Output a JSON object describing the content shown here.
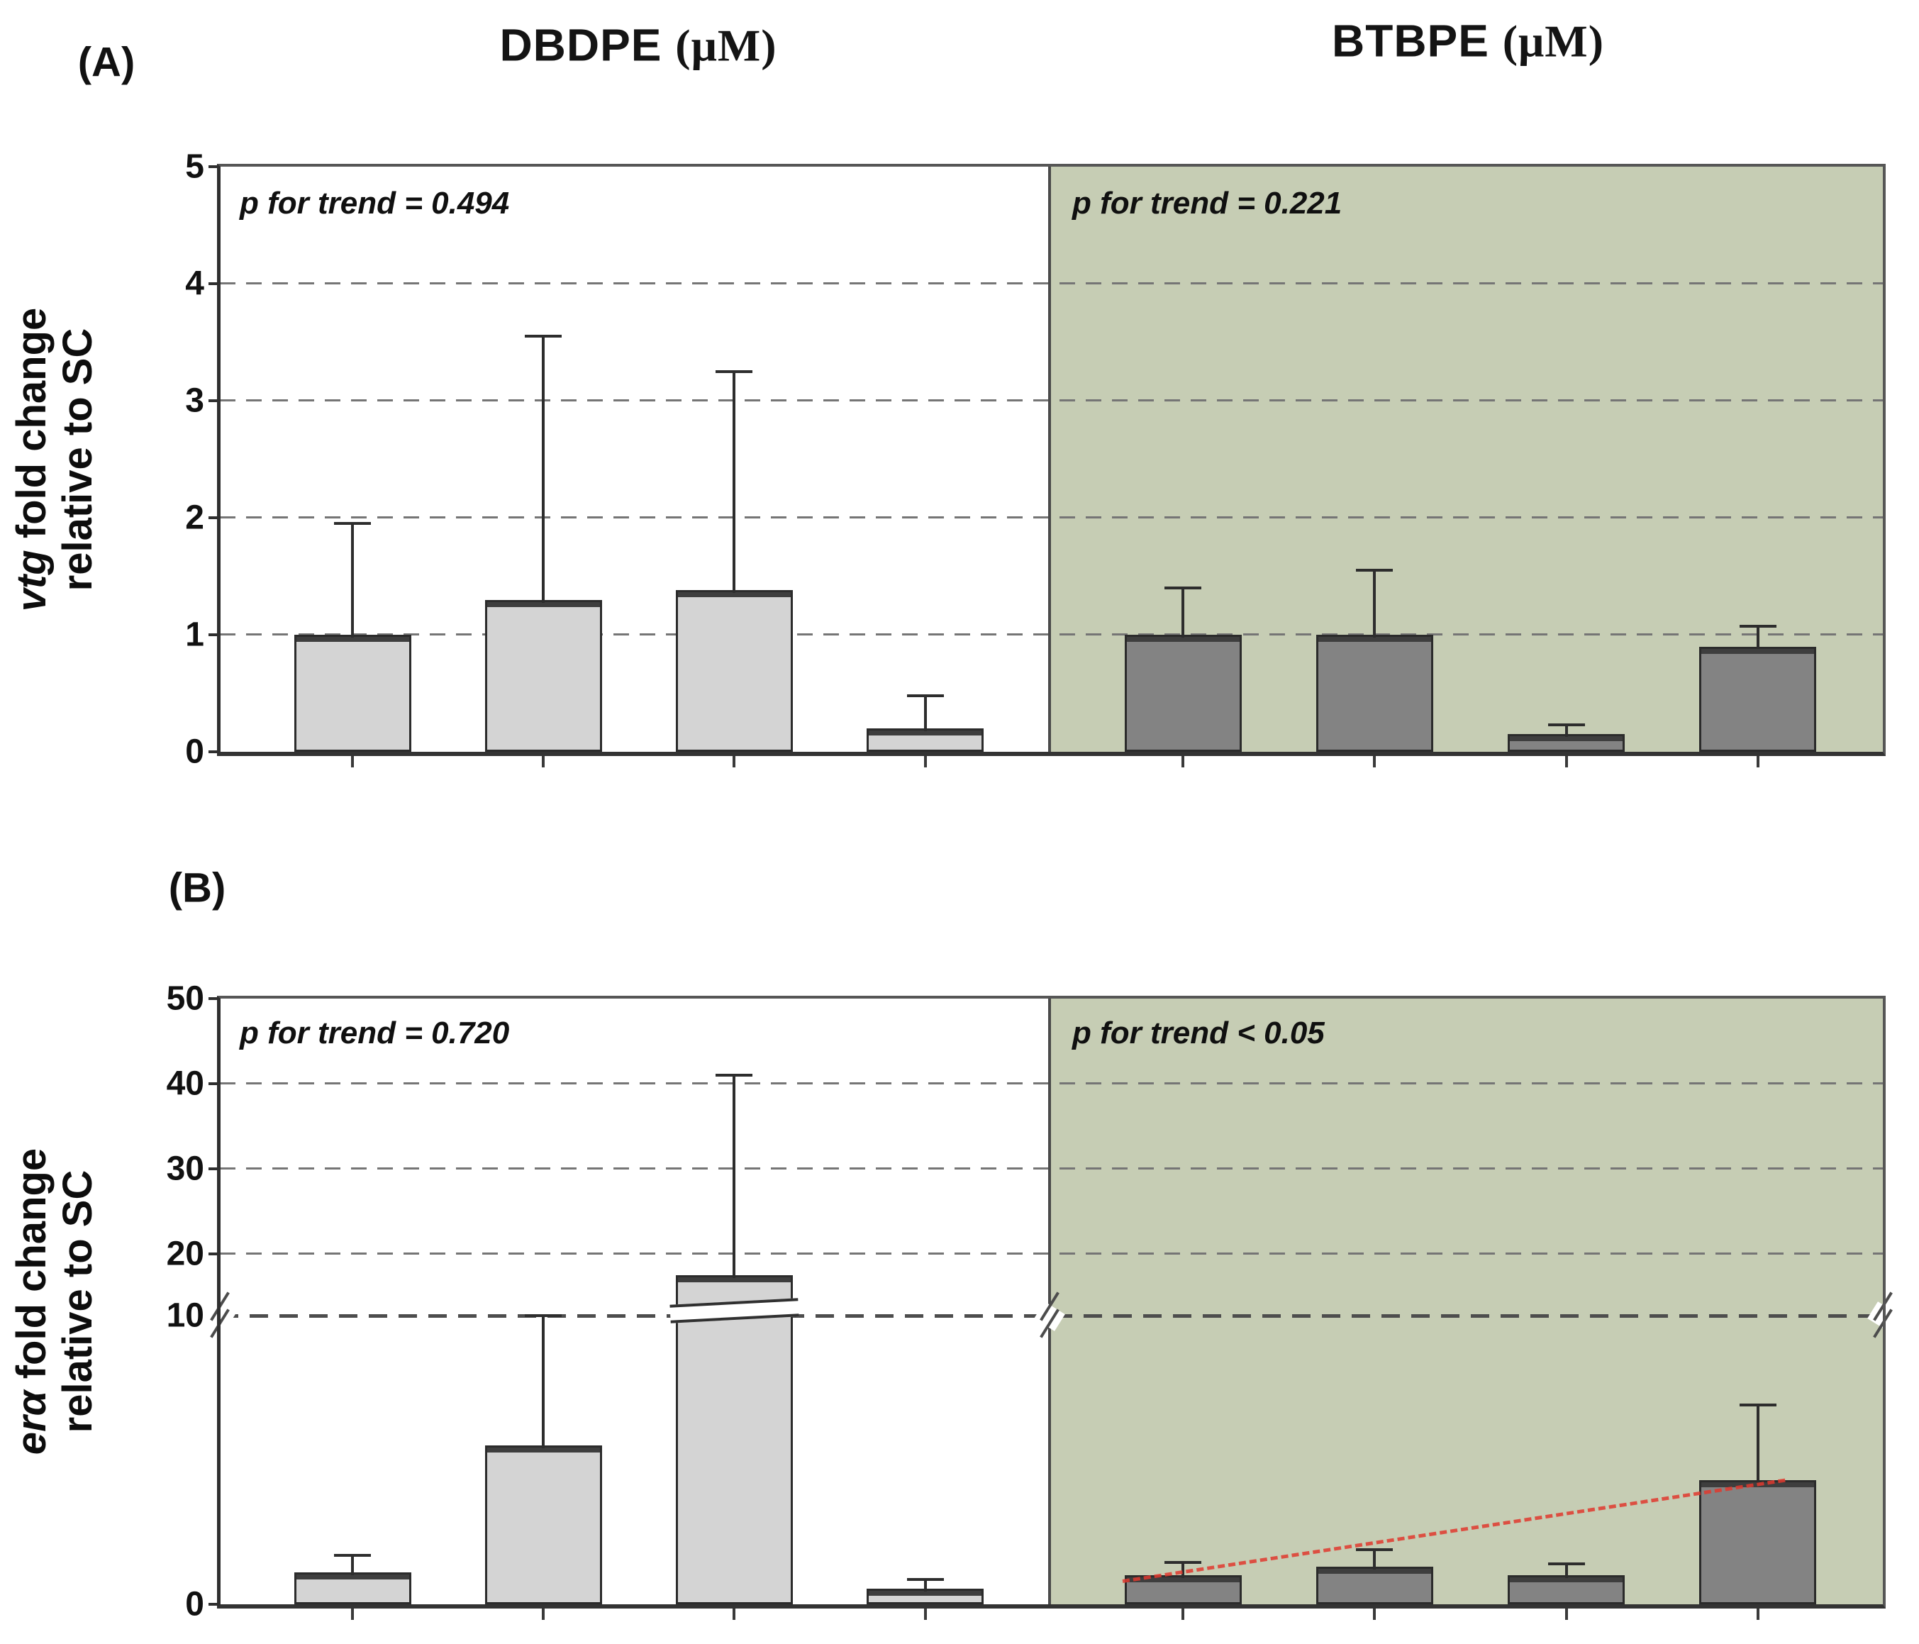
{
  "figure": {
    "panel_labels": [
      "(A)",
      "(B)"
    ],
    "col_titles": [
      {
        "name": "DBDPE ",
        "unit": "(μM)"
      },
      {
        "name": "BTBPE ",
        "unit": "(μM)"
      }
    ],
    "colors": {
      "left_panel_background": "#ffffff",
      "right_panel_background": "#c6cdb4",
      "light_bar": "#d4d4d4",
      "dark_bar": "#838383",
      "bar_border": "#2b2b2b",
      "gridline": "#757575",
      "trend_line_red": "#e03a2f"
    }
  },
  "chart_data": [
    {
      "type": "bar",
      "panel": "A",
      "ylabel_italic": "vtg",
      "ylabel_rest": " fold change",
      "ylabel_line2": "relative to SC",
      "ylim": [
        0,
        5
      ],
      "yticks": [
        0,
        1,
        2,
        3,
        4,
        5
      ],
      "gridlines": [
        1,
        2,
        3,
        4
      ],
      "grid_style": "dashed",
      "series": [
        {
          "name": "DBDPE",
          "annotation": "p for trend = 0.494",
          "background": "#ffffff",
          "bar_color": "#d4d4d4",
          "values": [
            1.0,
            1.3,
            1.38,
            0.2
          ],
          "error_tops": [
            1.95,
            3.55,
            3.25,
            0.48
          ]
        },
        {
          "name": "BTBPE",
          "annotation": "p for trend = 0.221",
          "background": "#c6cdb4",
          "bar_color": "#838383",
          "values": [
            1.0,
            1.0,
            0.15,
            0.9
          ],
          "error_tops": [
            1.4,
            1.55,
            0.23,
            1.07
          ]
        }
      ]
    },
    {
      "type": "bar",
      "panel": "B",
      "ylabel_italic": "erα",
      "ylabel_rest": " fold change",
      "ylabel_line2": "relative to SC",
      "ylim": [
        0,
        50
      ],
      "yticks": [
        0,
        10,
        20,
        30,
        40,
        50
      ],
      "gridlines": [
        10,
        20,
        30,
        40
      ],
      "grid_style": "dashed",
      "axis_break": {
        "at": 10,
        "note": "compressed scale above 10"
      },
      "series": [
        {
          "name": "DBDPE",
          "annotation": "p for trend = 0.720",
          "background": "#ffffff",
          "bar_color": "#d4d4d4",
          "values": [
            1.1,
            5.5,
            16.5,
            0.55
          ],
          "error_tops": [
            1.7,
            10,
            41,
            0.85
          ],
          "bar_crossing_break_index": 2
        },
        {
          "name": "BTBPE",
          "annotation": "p for trend < 0.05",
          "background": "#c6cdb4",
          "bar_color": "#838383",
          "values": [
            1.0,
            1.3,
            1.0,
            4.3
          ],
          "error_tops": [
            1.45,
            1.9,
            1.4,
            6.9
          ],
          "trend_line": {
            "color": "#e03a2f",
            "style": "dash-dot",
            "from_bar": 1,
            "to_bar": 4
          }
        }
      ]
    }
  ]
}
